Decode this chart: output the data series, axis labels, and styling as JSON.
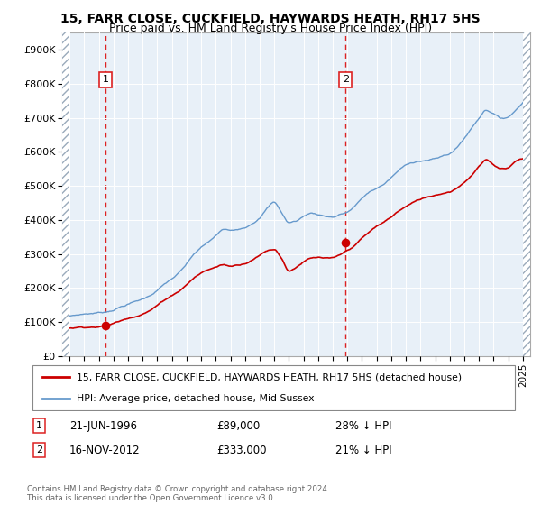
{
  "title": "15, FARR CLOSE, CUCKFIELD, HAYWARDS HEATH, RH17 5HS",
  "subtitle": "Price paid vs. HM Land Registry's House Price Index (HPI)",
  "ylim": [
    0,
    950000
  ],
  "yticks": [
    0,
    100000,
    200000,
    300000,
    400000,
    500000,
    600000,
    700000,
    800000,
    900000
  ],
  "ytick_labels": [
    "£0",
    "£100K",
    "£200K",
    "£300K",
    "£400K",
    "£500K",
    "£600K",
    "£700K",
    "£800K",
    "£900K"
  ],
  "xlim_start": 1993.5,
  "xlim_end": 2025.5,
  "xticks": [
    1994,
    1995,
    1996,
    1997,
    1998,
    1999,
    2000,
    2001,
    2002,
    2003,
    2004,
    2005,
    2006,
    2007,
    2008,
    2009,
    2010,
    2011,
    2012,
    2013,
    2014,
    2015,
    2016,
    2017,
    2018,
    2019,
    2020,
    2021,
    2022,
    2023,
    2024,
    2025
  ],
  "sale1_x": 1996.47,
  "sale1_y": 89000,
  "sale2_x": 2012.88,
  "sale2_y": 333000,
  "sale_color": "#cc0000",
  "hpi_color": "#6699cc",
  "dashed_line_color": "#dd2222",
  "background_plot": "#e8f0f8",
  "legend_line1": "15, FARR CLOSE, CUCKFIELD, HAYWARDS HEATH, RH17 5HS (detached house)",
  "legend_line2": "HPI: Average price, detached house, Mid Sussex",
  "footer": "Contains HM Land Registry data © Crown copyright and database right 2024.\nThis data is licensed under the Open Government Licence v3.0.",
  "title_fontsize": 10,
  "subtitle_fontsize": 9,
  "hpi_base_points": [
    [
      1994.0,
      118000
    ],
    [
      1994.5,
      121000
    ],
    [
      1995.0,
      124000
    ],
    [
      1995.5,
      126000
    ],
    [
      1996.0,
      128000
    ],
    [
      1996.5,
      131000
    ],
    [
      1997.0,
      138000
    ],
    [
      1997.5,
      147000
    ],
    [
      1998.0,
      155000
    ],
    [
      1998.5,
      162000
    ],
    [
      1999.0,
      169000
    ],
    [
      1999.5,
      180000
    ],
    [
      2000.0,
      196000
    ],
    [
      2000.5,
      213000
    ],
    [
      2001.0,
      228000
    ],
    [
      2001.5,
      245000
    ],
    [
      2002.0,
      268000
    ],
    [
      2002.5,
      296000
    ],
    [
      2003.0,
      315000
    ],
    [
      2003.5,
      330000
    ],
    [
      2004.0,
      348000
    ],
    [
      2004.5,
      365000
    ],
    [
      2005.0,
      362000
    ],
    [
      2005.5,
      368000
    ],
    [
      2006.0,
      375000
    ],
    [
      2006.5,
      390000
    ],
    [
      2007.0,
      405000
    ],
    [
      2007.5,
      432000
    ],
    [
      2008.0,
      450000
    ],
    [
      2008.5,
      420000
    ],
    [
      2009.0,
      390000
    ],
    [
      2009.5,
      395000
    ],
    [
      2010.0,
      408000
    ],
    [
      2010.5,
      418000
    ],
    [
      2011.0,
      415000
    ],
    [
      2011.5,
      410000
    ],
    [
      2012.0,
      408000
    ],
    [
      2012.5,
      415000
    ],
    [
      2013.0,
      422000
    ],
    [
      2013.5,
      438000
    ],
    [
      2014.0,
      460000
    ],
    [
      2014.5,
      478000
    ],
    [
      2015.0,
      490000
    ],
    [
      2015.5,
      502000
    ],
    [
      2016.0,
      520000
    ],
    [
      2016.5,
      540000
    ],
    [
      2017.0,
      555000
    ],
    [
      2017.5,
      565000
    ],
    [
      2018.0,
      570000
    ],
    [
      2018.5,
      572000
    ],
    [
      2019.0,
      575000
    ],
    [
      2019.5,
      582000
    ],
    [
      2020.0,
      590000
    ],
    [
      2020.5,
      608000
    ],
    [
      2021.0,
      635000
    ],
    [
      2021.5,
      665000
    ],
    [
      2022.0,
      695000
    ],
    [
      2022.5,
      720000
    ],
    [
      2023.0,
      710000
    ],
    [
      2023.5,
      695000
    ],
    [
      2024.0,
      700000
    ],
    [
      2024.5,
      720000
    ],
    [
      2025.0,
      745000
    ]
  ],
  "prop_base_points": [
    [
      1994.0,
      82000
    ],
    [
      1994.5,
      84000
    ],
    [
      1995.0,
      86000
    ],
    [
      1995.5,
      87000
    ],
    [
      1996.0,
      88000
    ],
    [
      1996.5,
      90000
    ],
    [
      1997.0,
      97000
    ],
    [
      1997.5,
      104000
    ],
    [
      1998.0,
      113000
    ],
    [
      1998.5,
      120000
    ],
    [
      1999.0,
      128000
    ],
    [
      1999.5,
      138000
    ],
    [
      2000.0,
      152000
    ],
    [
      2000.5,
      168000
    ],
    [
      2001.0,
      182000
    ],
    [
      2001.5,
      196000
    ],
    [
      2002.0,
      214000
    ],
    [
      2002.5,
      234000
    ],
    [
      2003.0,
      248000
    ],
    [
      2003.5,
      258000
    ],
    [
      2004.0,
      265000
    ],
    [
      2004.5,
      272000
    ],
    [
      2005.0,
      268000
    ],
    [
      2005.5,
      272000
    ],
    [
      2006.0,
      278000
    ],
    [
      2006.5,
      290000
    ],
    [
      2007.0,
      302000
    ],
    [
      2007.5,
      316000
    ],
    [
      2008.0,
      320000
    ],
    [
      2008.5,
      295000
    ],
    [
      2009.0,
      258000
    ],
    [
      2009.5,
      270000
    ],
    [
      2010.0,
      285000
    ],
    [
      2010.5,
      294000
    ],
    [
      2011.0,
      295000
    ],
    [
      2011.5,
      292000
    ],
    [
      2012.0,
      290000
    ],
    [
      2012.5,
      298000
    ],
    [
      2013.0,
      310000
    ],
    [
      2013.5,
      325000
    ],
    [
      2014.0,
      345000
    ],
    [
      2014.5,
      362000
    ],
    [
      2015.0,
      378000
    ],
    [
      2015.5,
      390000
    ],
    [
      2016.0,
      405000
    ],
    [
      2016.5,
      422000
    ],
    [
      2017.0,
      435000
    ],
    [
      2017.5,
      446000
    ],
    [
      2018.0,
      455000
    ],
    [
      2018.5,
      462000
    ],
    [
      2019.0,
      468000
    ],
    [
      2019.5,
      474000
    ],
    [
      2020.0,
      480000
    ],
    [
      2020.5,
      492000
    ],
    [
      2021.0,
      510000
    ],
    [
      2021.5,
      530000
    ],
    [
      2022.0,
      555000
    ],
    [
      2022.5,
      572000
    ],
    [
      2023.0,
      558000
    ],
    [
      2023.5,
      548000
    ],
    [
      2024.0,
      552000
    ],
    [
      2024.5,
      570000
    ],
    [
      2025.0,
      580000
    ]
  ]
}
